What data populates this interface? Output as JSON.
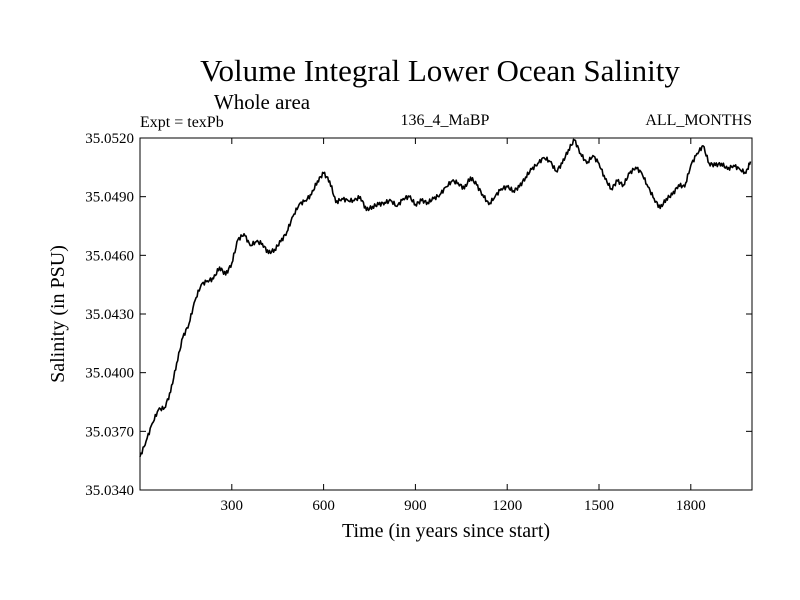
{
  "chart_data": {
    "type": "line",
    "title": "Volume Integral Lower Ocean Salinity",
    "subtitle": "Whole area",
    "experiment": "Expt = texPb",
    "run_label": "136_4_MaBP",
    "months_label": "ALL_MONTHS",
    "xlabel": "Time (in years since start)",
    "ylabel": "Salinity (in PSU)",
    "xlim": [
      0,
      2000
    ],
    "ylim": [
      35.034,
      35.052
    ],
    "xticks": [
      300,
      600,
      900,
      1200,
      1500,
      1800
    ],
    "yticks": [
      "35.0340",
      "35.0370",
      "35.0400",
      "35.0430",
      "35.0460",
      "35.0490",
      "35.0520"
    ],
    "grid": false,
    "series": [
      {
        "name": "Salinity",
        "color": "#000000",
        "x": [
          0,
          20,
          40,
          60,
          80,
          100,
          120,
          140,
          160,
          180,
          200,
          220,
          240,
          260,
          280,
          300,
          320,
          340,
          360,
          380,
          400,
          420,
          440,
          460,
          480,
          500,
          520,
          540,
          560,
          580,
          600,
          620,
          640,
          660,
          680,
          700,
          720,
          740,
          760,
          780,
          800,
          820,
          840,
          860,
          880,
          900,
          920,
          940,
          960,
          980,
          1000,
          1020,
          1040,
          1060,
          1080,
          1100,
          1120,
          1140,
          1160,
          1180,
          1200,
          1220,
          1240,
          1260,
          1280,
          1300,
          1320,
          1340,
          1360,
          1380,
          1400,
          1420,
          1440,
          1460,
          1480,
          1500,
          1520,
          1540,
          1560,
          1580,
          1600,
          1620,
          1640,
          1660,
          1680,
          1700,
          1720,
          1740,
          1760,
          1780,
          1800,
          1820,
          1840,
          1860,
          1880,
          1900,
          1920,
          1940,
          1960,
          1980,
          1995
        ],
        "values": [
          35.0357,
          35.0365,
          35.0374,
          35.0381,
          35.0382,
          35.039,
          35.0405,
          35.0418,
          35.0425,
          35.0437,
          35.0445,
          35.0447,
          35.0448,
          35.0454,
          35.045,
          35.0456,
          35.0468,
          35.0471,
          35.0465,
          35.0467,
          35.0466,
          35.0461,
          35.0463,
          35.0467,
          35.0472,
          35.048,
          35.0486,
          35.0488,
          35.0491,
          35.0498,
          35.0502,
          35.0498,
          35.0487,
          35.0489,
          35.0488,
          35.0488,
          35.049,
          35.0483,
          35.0485,
          35.0486,
          35.0487,
          35.0488,
          35.0485,
          35.0489,
          35.049,
          35.0486,
          35.0488,
          35.0487,
          35.0489,
          35.0491,
          35.0495,
          35.0498,
          35.0497,
          35.0494,
          35.05,
          35.0496,
          35.0491,
          35.0486,
          35.049,
          35.0494,
          35.0495,
          35.0493,
          35.0495,
          35.05,
          35.0504,
          35.0507,
          35.051,
          35.0508,
          35.0503,
          35.0507,
          35.0514,
          35.0519,
          35.0512,
          35.0507,
          35.0511,
          35.0507,
          35.0499,
          35.0494,
          35.0498,
          35.0496,
          35.0502,
          35.0505,
          35.0502,
          35.0495,
          35.0489,
          35.0484,
          35.0489,
          35.0491,
          35.0496,
          35.0495,
          35.0506,
          35.0512,
          35.0516,
          35.0507,
          35.0506,
          35.0507,
          35.0504,
          35.0506,
          35.0504,
          35.0502,
          35.0508
        ]
      }
    ]
  }
}
